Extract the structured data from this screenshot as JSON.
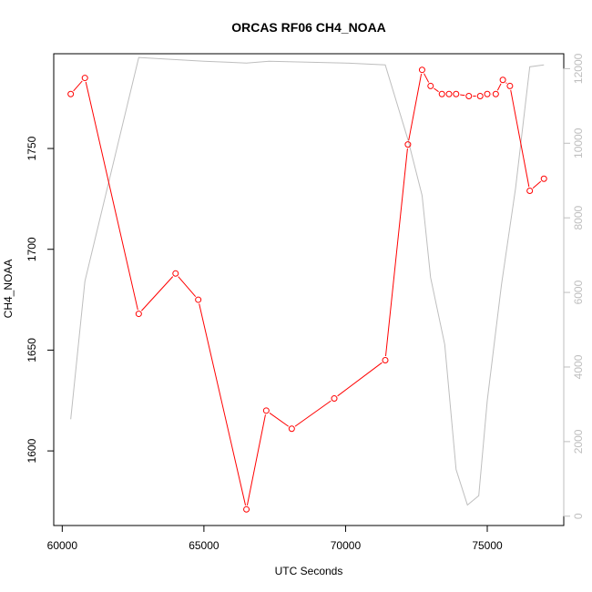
{
  "chart_data": {
    "type": "line",
    "title": "ORCAS RF06 CH4_NOAA",
    "xlabel": "UTC Seconds",
    "ylabel": "CH4_NOAA",
    "xlim": [
      59700,
      77700
    ],
    "ylim": [
      1563,
      1797
    ],
    "y2lim": [
      -250,
      12400
    ],
    "x_ticks": [
      "60000",
      "65000",
      "70000",
      "75000"
    ],
    "y_ticks": [
      "1600",
      "1650",
      "1700",
      "1750"
    ],
    "y2_ticks": [
      "0",
      "2000",
      "4000",
      "6000",
      "8000",
      "10000",
      "12000"
    ],
    "series": [
      {
        "color": "#ff0000",
        "axis": "left",
        "markers": "open-circle",
        "x": [
          60300,
          60800,
          62700,
          64000,
          64800,
          66500,
          67200,
          68100,
          69600,
          71400,
          72200,
          72700,
          73000,
          73400,
          73650,
          73900,
          74350,
          74750,
          75000,
          75300,
          75550,
          75800,
          76500,
          77000
        ],
        "y": [
          1777,
          1785,
          1668,
          1688,
          1675,
          1571,
          1620,
          1611,
          1626,
          1645,
          1752,
          1789,
          1781,
          1777,
          1777,
          1777,
          1776,
          1776,
          1777,
          1777,
          1784,
          1781,
          1729,
          1735
        ]
      },
      {
        "color": "#bebebe",
        "axis": "right",
        "markers": "none",
        "x": [
          60300,
          60800,
          62700,
          65000,
          66500,
          67300,
          70000,
          71400,
          72200,
          72700,
          73000,
          73500,
          73900,
          74300,
          74700,
          75000,
          75500,
          76000,
          76500,
          77000
        ],
        "y": [
          2600,
          6300,
          12300,
          12200,
          12150,
          12200,
          12150,
          12100,
          10100,
          8600,
          6400,
          4600,
          1250,
          300,
          550,
          3100,
          6200,
          8800,
          12050,
          12100
        ]
      }
    ]
  }
}
